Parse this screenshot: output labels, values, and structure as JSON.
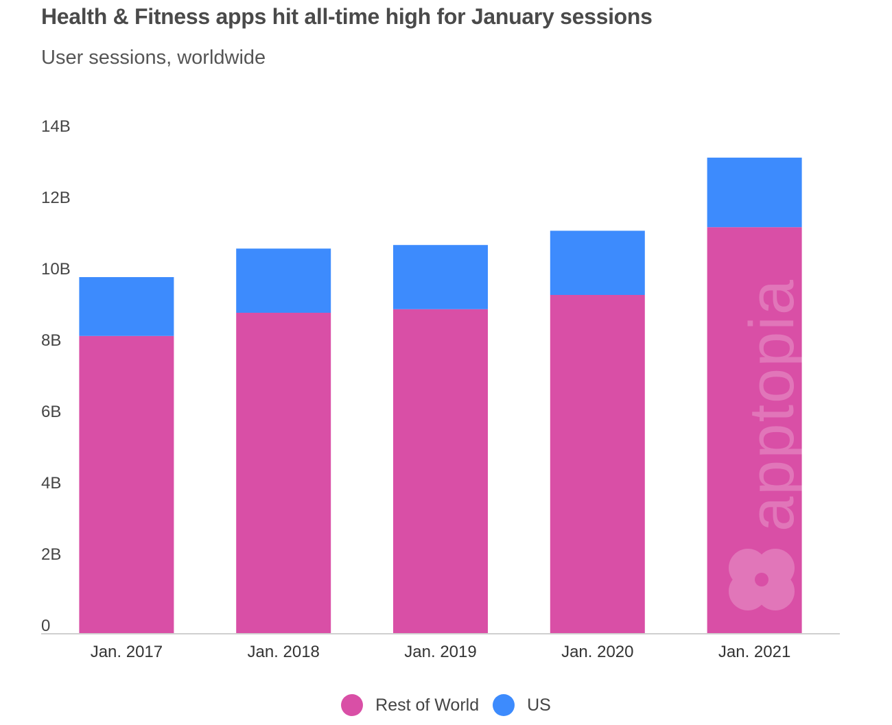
{
  "chart_data": {
    "type": "bar",
    "stacked": true,
    "title": "Health & Fitness apps hit all-time high for January sessions",
    "subtitle": "User sessions, worldwide",
    "categories": [
      "Jan. 2017",
      "Jan. 2018",
      "Jan. 2019",
      "Jan. 2020",
      "Jan. 2021"
    ],
    "series": [
      {
        "name": "Rest of World",
        "color": "#d94fa6",
        "values": [
          8.35,
          9.0,
          9.1,
          9.5,
          11.4
        ]
      },
      {
        "name": "US",
        "color": "#3d8bfd",
        "values": [
          1.65,
          1.8,
          1.8,
          1.8,
          1.95
        ]
      }
    ],
    "y_ticks": [
      {
        "value": 0,
        "label": "0"
      },
      {
        "value": 2,
        "label": "2B"
      },
      {
        "value": 4,
        "label": "4B"
      },
      {
        "value": 6,
        "label": "6B"
      },
      {
        "value": 8,
        "label": "8B"
      },
      {
        "value": 10,
        "label": "10B"
      },
      {
        "value": 12,
        "label": "12B"
      },
      {
        "value": 14,
        "label": "14B"
      }
    ],
    "ylim": [
      0,
      14
    ],
    "grid": false,
    "legend_position": "bottom-center"
  },
  "watermark": {
    "text": "apptopia",
    "icon": "apptopia-logo-icon"
  }
}
